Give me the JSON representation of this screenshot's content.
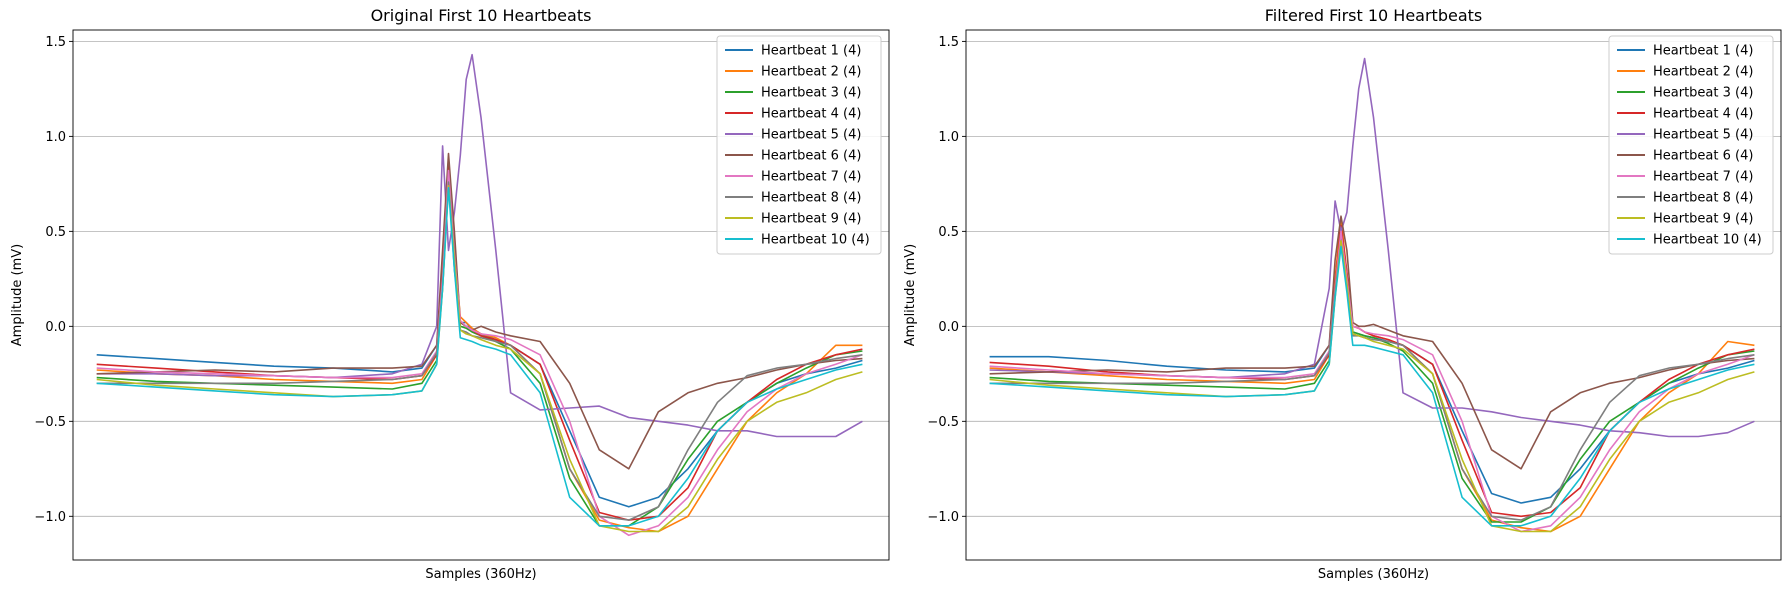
{
  "chart_data": [
    {
      "type": "line",
      "title": "Original First 10 Heartbeats",
      "xlabel": "Samples (360Hz)",
      "ylabel": "Amplitude (mV)",
      "ylim": [
        -1.23,
        1.56
      ],
      "xlim": [
        -8,
        268
      ],
      "yticks": [
        "1.5",
        "1.0",
        "0.5",
        "0.0",
        "−0.5",
        "−1.0"
      ],
      "grid": "horizontal",
      "legend_position": "top-right",
      "x": [
        0,
        20,
        40,
        60,
        80,
        100,
        110,
        115,
        117,
        119,
        121,
        123,
        125,
        127,
        130,
        135,
        140,
        150,
        160,
        170,
        180,
        190,
        200,
        210,
        220,
        230,
        240,
        250,
        259
      ],
      "series": [
        {
          "name": "Heartbeat 1 (4)",
          "color": "#1f77b4",
          "values": [
            -0.15,
            -0.17,
            -0.19,
            -0.21,
            -0.22,
            -0.24,
            -0.22,
            -0.1,
            0.3,
            0.78,
            0.3,
            0.02,
            0.02,
            -0.02,
            -0.04,
            -0.07,
            -0.1,
            -0.2,
            -0.55,
            -0.9,
            -0.95,
            -0.9,
            -0.75,
            -0.55,
            -0.4,
            -0.3,
            -0.25,
            -0.22,
            -0.18
          ]
        },
        {
          "name": "Heartbeat 2 (4)",
          "color": "#ff7f0e",
          "values": [
            -0.23,
            -0.25,
            -0.26,
            -0.28,
            -0.29,
            -0.3,
            -0.28,
            -0.15,
            0.3,
            0.88,
            0.4,
            0.05,
            0.02,
            -0.01,
            -0.04,
            -0.06,
            -0.1,
            -0.25,
            -0.75,
            -1.02,
            -1.06,
            -1.08,
            -1.0,
            -0.75,
            -0.5,
            -0.35,
            -0.25,
            -0.1,
            -0.1
          ]
        },
        {
          "name": "Heartbeat 3 (4)",
          "color": "#2ca02c",
          "values": [
            -0.27,
            -0.29,
            -0.3,
            -0.31,
            -0.32,
            -0.33,
            -0.3,
            -0.18,
            0.25,
            0.8,
            0.35,
            0.0,
            -0.01,
            -0.03,
            -0.05,
            -0.08,
            -0.12,
            -0.3,
            -0.8,
            -1.05,
            -1.05,
            -0.95,
            -0.7,
            -0.5,
            -0.4,
            -0.3,
            -0.22,
            -0.15,
            -0.13
          ]
        },
        {
          "name": "Heartbeat 4 (4)",
          "color": "#d62728",
          "values": [
            -0.2,
            -0.22,
            -0.24,
            -0.26,
            -0.27,
            -0.28,
            -0.26,
            -0.15,
            0.3,
            0.85,
            0.4,
            0.02,
            0.0,
            -0.02,
            -0.05,
            -0.07,
            -0.1,
            -0.2,
            -0.6,
            -0.98,
            -1.02,
            -1.0,
            -0.85,
            -0.55,
            -0.4,
            -0.28,
            -0.2,
            -0.15,
            -0.12
          ]
        },
        {
          "name": "Heartbeat 5 (4)",
          "color": "#9467bd",
          "values": [
            -0.25,
            -0.25,
            -0.26,
            -0.26,
            -0.27,
            -0.25,
            -0.2,
            0.0,
            0.95,
            0.4,
            0.6,
            0.9,
            1.3,
            1.43,
            1.1,
            0.4,
            -0.35,
            -0.44,
            -0.43,
            -0.42,
            -0.48,
            -0.5,
            -0.52,
            -0.55,
            -0.55,
            -0.58,
            -0.58,
            -0.58,
            -0.5
          ]
        },
        {
          "name": "Heartbeat 6 (4)",
          "color": "#8c564b",
          "values": [
            -0.25,
            -0.24,
            -0.23,
            -0.24,
            -0.22,
            -0.22,
            -0.21,
            -0.1,
            0.4,
            0.91,
            0.5,
            0.02,
            0.0,
            -0.02,
            0.0,
            -0.03,
            -0.05,
            -0.08,
            -0.3,
            -0.65,
            -0.75,
            -0.45,
            -0.35,
            -0.3,
            -0.27,
            -0.23,
            -0.2,
            -0.18,
            -0.17
          ]
        },
        {
          "name": "Heartbeat 7 (4)",
          "color": "#e377c2",
          "values": [
            -0.22,
            -0.24,
            -0.25,
            -0.26,
            -0.27,
            -0.27,
            -0.25,
            -0.13,
            0.25,
            0.82,
            0.38,
            0.03,
            0.0,
            -0.02,
            -0.04,
            -0.05,
            -0.07,
            -0.15,
            -0.5,
            -1.0,
            -1.1,
            -1.05,
            -0.9,
            -0.65,
            -0.45,
            -0.33,
            -0.25,
            -0.2,
            -0.15
          ]
        },
        {
          "name": "Heartbeat 8 (4)",
          "color": "#7f7f7f",
          "values": [
            -0.3,
            -0.3,
            -0.3,
            -0.3,
            -0.29,
            -0.28,
            -0.26,
            -0.14,
            0.2,
            0.76,
            0.35,
            -0.02,
            -0.03,
            -0.05,
            -0.06,
            -0.08,
            -0.1,
            -0.25,
            -0.75,
            -1.0,
            -1.02,
            -0.95,
            -0.65,
            -0.4,
            -0.26,
            -0.22,
            -0.2,
            -0.17,
            -0.15
          ]
        },
        {
          "name": "Heartbeat 9 (4)",
          "color": "#bcbd22",
          "values": [
            -0.28,
            -0.31,
            -0.33,
            -0.35,
            -0.37,
            -0.36,
            -0.34,
            -0.2,
            0.2,
            0.74,
            0.35,
            -0.02,
            -0.04,
            -0.05,
            -0.07,
            -0.1,
            -0.12,
            -0.25,
            -0.7,
            -1.05,
            -1.08,
            -1.08,
            -0.95,
            -0.7,
            -0.5,
            -0.4,
            -0.35,
            -0.28,
            -0.24
          ]
        },
        {
          "name": "Heartbeat 10 (4)",
          "color": "#17becf",
          "values": [
            -0.3,
            -0.32,
            -0.34,
            -0.36,
            -0.37,
            -0.36,
            -0.34,
            -0.2,
            0.2,
            0.73,
            0.3,
            -0.06,
            -0.07,
            -0.08,
            -0.1,
            -0.12,
            -0.15,
            -0.35,
            -0.9,
            -1.05,
            -1.05,
            -1.0,
            -0.8,
            -0.55,
            -0.4,
            -0.33,
            -0.28,
            -0.23,
            -0.2
          ]
        }
      ]
    },
    {
      "type": "line",
      "title": "Filtered First 10 Heartbeats",
      "xlabel": "Samples (360Hz)",
      "ylabel": "Amplitude (mV)",
      "ylim": [
        -1.23,
        1.56
      ],
      "xlim": [
        -8,
        268
      ],
      "yticks": [
        "1.5",
        "1.0",
        "0.5",
        "0.0",
        "−0.5",
        "−1.0"
      ],
      "grid": "horizontal",
      "legend_position": "top-right",
      "x": [
        0,
        20,
        40,
        60,
        80,
        100,
        110,
        115,
        117,
        119,
        121,
        123,
        125,
        127,
        130,
        135,
        140,
        150,
        160,
        170,
        180,
        190,
        200,
        210,
        220,
        230,
        240,
        250,
        259
      ],
      "series": [
        {
          "name": "Heartbeat 1 (4)",
          "color": "#1f77b4",
          "values": [
            -0.16,
            -0.16,
            -0.18,
            -0.21,
            -0.23,
            -0.24,
            -0.22,
            -0.1,
            0.2,
            0.46,
            0.2,
            -0.03,
            -0.04,
            -0.05,
            -0.06,
            -0.08,
            -0.1,
            -0.2,
            -0.55,
            -0.88,
            -0.93,
            -0.9,
            -0.75,
            -0.55,
            -0.4,
            -0.3,
            -0.25,
            -0.22,
            -0.18
          ]
        },
        {
          "name": "Heartbeat 2 (4)",
          "color": "#ff7f0e",
          "values": [
            -0.22,
            -0.24,
            -0.26,
            -0.28,
            -0.29,
            -0.3,
            -0.28,
            -0.15,
            0.25,
            0.57,
            0.28,
            0.0,
            -0.01,
            -0.03,
            -0.05,
            -0.07,
            -0.1,
            -0.25,
            -0.75,
            -1.02,
            -1.06,
            -1.08,
            -1.0,
            -0.75,
            -0.5,
            -0.35,
            -0.25,
            -0.08,
            -0.1
          ]
        },
        {
          "name": "Heartbeat 3 (4)",
          "color": "#2ca02c",
          "values": [
            -0.27,
            -0.29,
            -0.3,
            -0.31,
            -0.32,
            -0.33,
            -0.3,
            -0.18,
            0.2,
            0.5,
            0.25,
            -0.03,
            -0.04,
            -0.05,
            -0.06,
            -0.09,
            -0.13,
            -0.3,
            -0.8,
            -1.03,
            -1.03,
            -0.95,
            -0.7,
            -0.5,
            -0.4,
            -0.3,
            -0.22,
            -0.15,
            -0.13
          ]
        },
        {
          "name": "Heartbeat 4 (4)",
          "color": "#d62728",
          "values": [
            -0.19,
            -0.21,
            -0.24,
            -0.26,
            -0.27,
            -0.28,
            -0.26,
            -0.15,
            0.22,
            0.53,
            0.28,
            0.0,
            -0.01,
            -0.03,
            -0.05,
            -0.07,
            -0.1,
            -0.2,
            -0.6,
            -0.98,
            -1.0,
            -0.98,
            -0.85,
            -0.55,
            -0.4,
            -0.28,
            -0.2,
            -0.15,
            -0.12
          ]
        },
        {
          "name": "Heartbeat 5 (4)",
          "color": "#9467bd",
          "values": [
            -0.23,
            -0.24,
            -0.25,
            -0.26,
            -0.27,
            -0.25,
            -0.2,
            0.2,
            0.66,
            0.5,
            0.6,
            0.95,
            1.25,
            1.41,
            1.1,
            0.4,
            -0.35,
            -0.43,
            -0.43,
            -0.45,
            -0.48,
            -0.5,
            -0.52,
            -0.55,
            -0.56,
            -0.58,
            -0.58,
            -0.56,
            -0.5
          ]
        },
        {
          "name": "Heartbeat 6 (4)",
          "color": "#8c564b",
          "values": [
            -0.25,
            -0.24,
            -0.23,
            -0.24,
            -0.22,
            -0.22,
            -0.21,
            -0.1,
            0.35,
            0.58,
            0.4,
            0.02,
            0.0,
            0.0,
            0.01,
            -0.02,
            -0.05,
            -0.08,
            -0.3,
            -0.65,
            -0.75,
            -0.45,
            -0.35,
            -0.3,
            -0.27,
            -0.23,
            -0.2,
            -0.18,
            -0.17
          ]
        },
        {
          "name": "Heartbeat 7 (4)",
          "color": "#e377c2",
          "values": [
            -0.21,
            -0.23,
            -0.25,
            -0.26,
            -0.27,
            -0.27,
            -0.25,
            -0.13,
            0.2,
            0.5,
            0.25,
            0.0,
            -0.01,
            -0.03,
            -0.04,
            -0.05,
            -0.07,
            -0.15,
            -0.5,
            -1.0,
            -1.08,
            -1.05,
            -0.9,
            -0.65,
            -0.45,
            -0.33,
            -0.25,
            -0.2,
            -0.15
          ]
        },
        {
          "name": "Heartbeat 8 (4)",
          "color": "#7f7f7f",
          "values": [
            -0.3,
            -0.3,
            -0.3,
            -0.3,
            -0.29,
            -0.28,
            -0.26,
            -0.14,
            0.18,
            0.45,
            0.22,
            -0.05,
            -0.05,
            -0.06,
            -0.07,
            -0.08,
            -0.1,
            -0.25,
            -0.75,
            -1.0,
            -1.02,
            -0.95,
            -0.65,
            -0.4,
            -0.26,
            -0.22,
            -0.2,
            -0.17,
            -0.15
          ]
        },
        {
          "name": "Heartbeat 9 (4)",
          "color": "#bcbd22",
          "values": [
            -0.28,
            -0.31,
            -0.33,
            -0.35,
            -0.37,
            -0.36,
            -0.34,
            -0.2,
            0.15,
            0.45,
            0.22,
            -0.04,
            -0.05,
            -0.06,
            -0.08,
            -0.1,
            -0.12,
            -0.25,
            -0.7,
            -1.05,
            -1.08,
            -1.08,
            -0.95,
            -0.7,
            -0.5,
            -0.4,
            -0.35,
            -0.28,
            -0.24
          ]
        },
        {
          "name": "Heartbeat 10 (4)",
          "color": "#17becf",
          "values": [
            -0.3,
            -0.32,
            -0.34,
            -0.36,
            -0.37,
            -0.36,
            -0.34,
            -0.2,
            0.15,
            0.42,
            0.18,
            -0.1,
            -0.1,
            -0.1,
            -0.11,
            -0.13,
            -0.15,
            -0.35,
            -0.9,
            -1.05,
            -1.05,
            -1.0,
            -0.8,
            -0.55,
            -0.4,
            -0.33,
            -0.28,
            -0.23,
            -0.2
          ]
        }
      ]
    }
  ]
}
